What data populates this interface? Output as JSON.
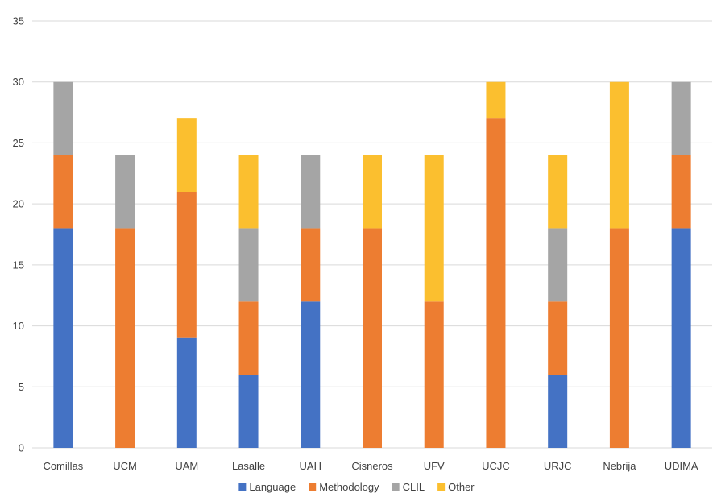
{
  "chart_data": {
    "type": "bar",
    "stacked": true,
    "title": "",
    "xlabel": "",
    "ylabel": "",
    "ylim": [
      0,
      35
    ],
    "yticks": [
      0,
      5,
      10,
      15,
      20,
      25,
      30,
      35
    ],
    "grid": true,
    "legend_position": "bottom",
    "categories": [
      "Comillas",
      "UCM",
      "UAM",
      "Lasalle",
      "UAH",
      "Cisneros",
      "UFV",
      "UCJC",
      "URJC",
      "Nebrija",
      "UDIMA"
    ],
    "series": [
      {
        "name": "Language",
        "color": "#4472c4",
        "values": [
          18,
          0,
          9,
          6,
          12,
          0,
          0,
          0,
          6,
          0,
          18
        ]
      },
      {
        "name": "Methodology",
        "color": "#ed7d31",
        "values": [
          6,
          18,
          12,
          6,
          6,
          18,
          12,
          27,
          6,
          18,
          6
        ]
      },
      {
        "name": "CLIL",
        "color": "#a5a5a5",
        "values": [
          6,
          6,
          0,
          6,
          6,
          0,
          0,
          0,
          6,
          0,
          6
        ]
      },
      {
        "name": "Other",
        "color": "#fbbf2f",
        "values": [
          0,
          0,
          6,
          6,
          0,
          6,
          12,
          3,
          6,
          12,
          0
        ]
      }
    ]
  }
}
